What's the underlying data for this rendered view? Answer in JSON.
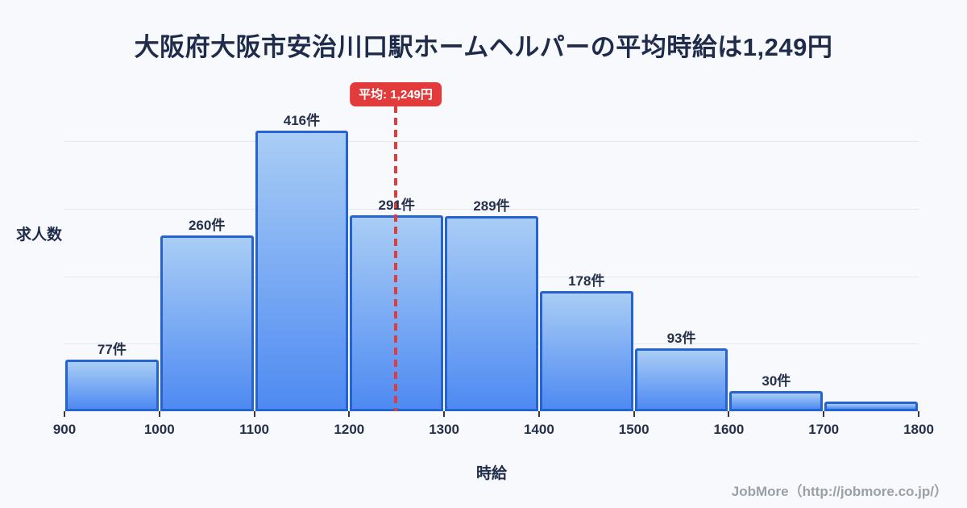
{
  "title": "大阪府大阪市安治川口駅ホームヘルパーの平均時給は1,249円",
  "axes": {
    "y_label": "求人数",
    "x_label": "時給"
  },
  "footer": {
    "credit": "JobMore（http://jobmore.co.jp/）"
  },
  "colors": {
    "background": "#f7f9fc",
    "title_text": "#1e2b4a",
    "bar_fill_top": "#a9cdf5",
    "bar_fill_bottom": "#4e8af2",
    "bar_border": "#2563d0",
    "grid_line": "#e3e8f0",
    "axis_text": "#25304a",
    "average_red": "#e23b3b",
    "footer_text": "#9aa0a8"
  },
  "chart_data": {
    "type": "bar",
    "subtype": "histogram",
    "title": "大阪府大阪市安治川口駅ホームヘルパーの平均時給は1,249円",
    "xlabel": "時給",
    "ylabel": "求人数",
    "bins": [
      900,
      1000,
      1100,
      1200,
      1300,
      1400,
      1500,
      1600,
      1700,
      1800
    ],
    "categories": [
      "900-1000",
      "1000-1100",
      "1100-1200",
      "1200-1300",
      "1300-1400",
      "1400-1500",
      "1500-1600",
      "1600-1700",
      "1700-1800"
    ],
    "values": [
      77,
      260,
      416,
      291,
      289,
      178,
      93,
      30,
      14
    ],
    "bar_labels": [
      "77件",
      "260件",
      "416件",
      "291件",
      "289件",
      "178件",
      "93件",
      "30件",
      ""
    ],
    "x_tick_labels": [
      "900",
      "1000",
      "1100",
      "1200",
      "1300",
      "1400",
      "1500",
      "1600",
      "1700",
      "1800"
    ],
    "xlim": [
      900,
      1800
    ],
    "ylim": [
      0,
      490
    ],
    "grid_values": [
      100,
      200,
      300,
      400
    ],
    "grid": "horizontal-only",
    "legend": "none",
    "average_line": {
      "x": 1249,
      "label": "平均: 1,249円",
      "color": "#e23b3b",
      "style": "dashed"
    }
  }
}
